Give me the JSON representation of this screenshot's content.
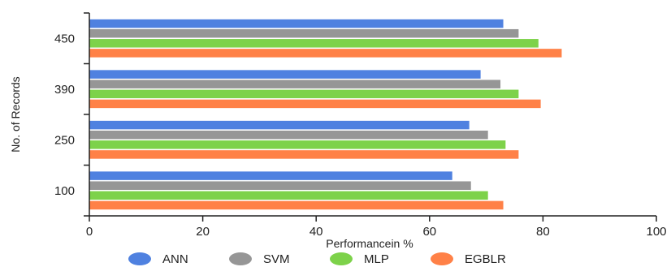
{
  "chart_data": {
    "type": "bar",
    "orientation": "horizontal",
    "categories": [
      "100",
      "250",
      "390",
      "450"
    ],
    "series": [
      {
        "name": "ANN",
        "color": "#4F81E0",
        "values": [
          64,
          67,
          69,
          73
        ]
      },
      {
        "name": "SVM",
        "color": "#969696",
        "values": [
          67.3,
          70.3,
          72.5,
          75.7
        ]
      },
      {
        "name": "MLP",
        "color": "#7DD24A",
        "values": [
          70.3,
          73.4,
          75.7,
          79.2
        ]
      },
      {
        "name": "EGBLR",
        "color": "#FF8147",
        "values": [
          73,
          75.7,
          79.6,
          83.3
        ]
      }
    ],
    "xlabel": "Performancein %",
    "ylabel": "No. of Records",
    "xlim": [
      0,
      100
    ],
    "xticks": [
      0,
      20,
      40,
      60,
      80,
      100
    ],
    "grid": false,
    "legend_position": "bottom"
  }
}
